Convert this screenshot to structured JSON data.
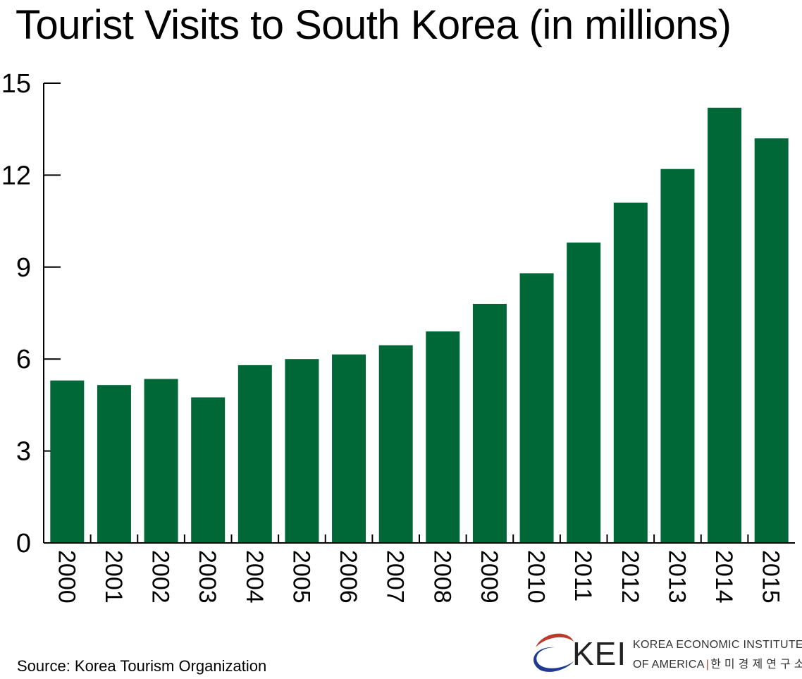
{
  "chart_data": {
    "type": "bar",
    "title": "Tourist Visits to South Korea (in millions)",
    "xlabel": "",
    "ylabel": "",
    "categories": [
      "2000",
      "2001",
      "2002",
      "2003",
      "2004",
      "2005",
      "2006",
      "2007",
      "2008",
      "2009",
      "2010",
      "2011",
      "2012",
      "2013",
      "2014",
      "2015"
    ],
    "values": [
      5.3,
      5.15,
      5.35,
      4.75,
      5.8,
      6.0,
      6.15,
      6.45,
      6.9,
      7.8,
      8.8,
      9.8,
      11.1,
      12.2,
      14.2,
      13.2
    ],
    "ylim": [
      0,
      15
    ],
    "yticks": [
      "0",
      "3",
      "6",
      "9",
      "12",
      "15"
    ],
    "grid": false,
    "legend": "none",
    "bar_color": "#006837"
  },
  "source": "Source: Korea Tourism Organization",
  "logo": {
    "abbr": "KEI",
    "line1": "KOREA ECONOMIC INSTITUTE",
    "line2_en": "OF AMERICA",
    "line2_sep": "|",
    "line2_ko": "한 미 경 제 연 구 소",
    "red": "#c0392b",
    "blue": "#1f3a93"
  }
}
